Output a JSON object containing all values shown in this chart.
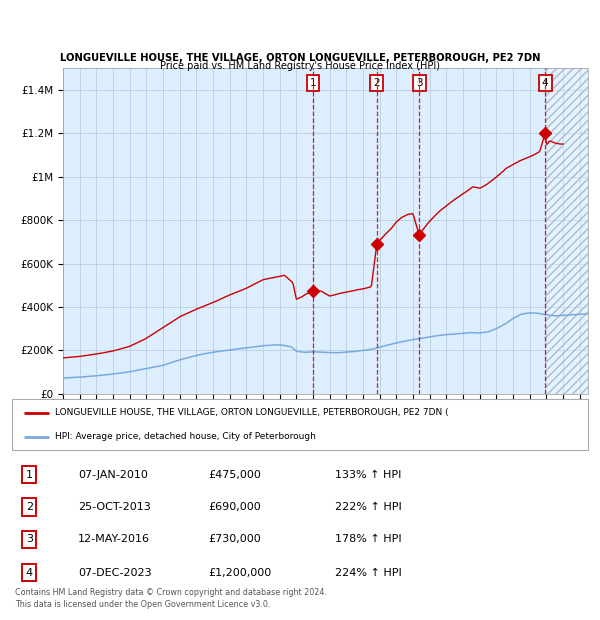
{
  "title1": "LONGUEVILLE HOUSE, THE VILLAGE, ORTON LONGUEVILLE, PETERBOROUGH, PE2 7DN",
  "title2": "Price paid vs. HM Land Registry's House Price Index (HPI)",
  "red_label": "LONGUEVILLE HOUSE, THE VILLAGE, ORTON LONGUEVILLE, PETERBOROUGH, PE2 7DN (",
  "blue_label": "HPI: Average price, detached house, City of Peterborough",
  "footer": "Contains HM Land Registry data © Crown copyright and database right 2024.\nThis data is licensed under the Open Government Licence v3.0.",
  "sales": [
    {
      "num": 1,
      "date": "07-JAN-2010",
      "price": 475000,
      "year": 2010.0,
      "hpi_pct": "133%"
    },
    {
      "num": 2,
      "date": "25-OCT-2013",
      "price": 690000,
      "year": 2013.83,
      "hpi_pct": "222%"
    },
    {
      "num": 3,
      "date": "12-MAY-2016",
      "price": 730000,
      "year": 2016.37,
      "hpi_pct": "178%"
    },
    {
      "num": 4,
      "date": "07-DEC-2023",
      "price": 1200000,
      "year": 2023.93,
      "hpi_pct": "224%"
    }
  ],
  "ylim_max": 1500000,
  "xlim_start": 1995.0,
  "xlim_end": 2026.5,
  "hpi_color": "#7aaadd",
  "property_color": "#cc0000",
  "bg_color": "#ddeeff",
  "grid_color": "#bbccdd",
  "sale_vline_color": "#cc0000",
  "hatch_color": "#aabbcc",
  "table_rows": [
    [
      "1",
      "07-JAN-2010",
      "£475,000",
      "133% ↑ HPI"
    ],
    [
      "2",
      "25-OCT-2013",
      "£690,000",
      "222% ↑ HPI"
    ],
    [
      "3",
      "12-MAY-2016",
      "£730,000",
      "178% ↑ HPI"
    ],
    [
      "4",
      "07-DEC-2023",
      "£1,200,000",
      "224% ↑ HPI"
    ]
  ]
}
